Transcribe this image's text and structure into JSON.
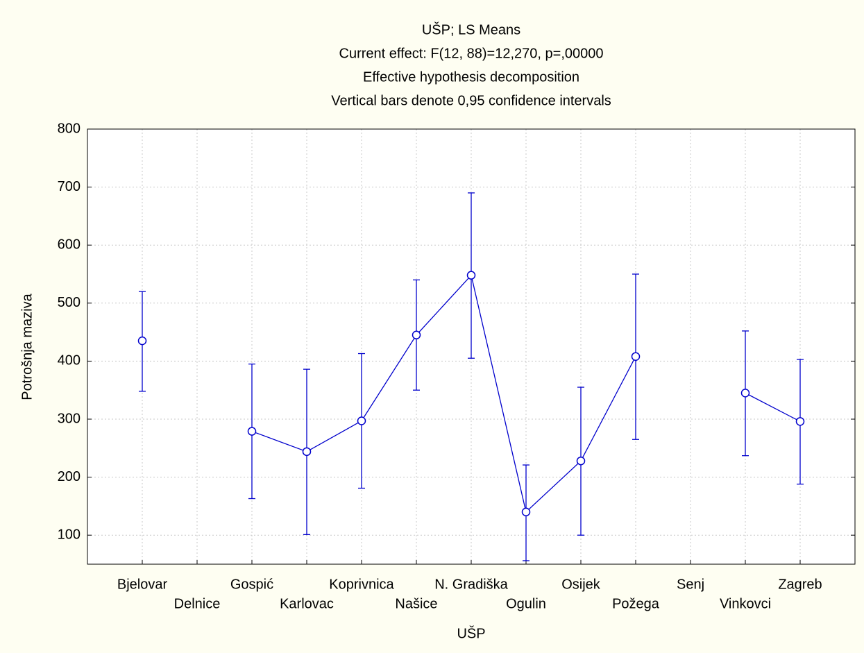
{
  "chart_data": {
    "type": "line",
    "title": "UŠP; LS Means",
    "subtitles": [
      "Current effect: F(12, 88)=12,270, p=,00000",
      "Effective hypothesis decomposition",
      "Vertical bars denote 0,95 confidence intervals"
    ],
    "x_label": "UŠP",
    "y_label": "Potrošnja maziva",
    "categories": [
      "Bjelovar",
      "Delnice",
      "Gospić",
      "Karlovac",
      "Koprivnica",
      "Našice",
      "N. Gradiška",
      "Ogulin",
      "Osijek",
      "Požega",
      "Senj",
      "Vinkovci",
      "Zagreb"
    ],
    "series": [
      {
        "color": "#0000cc",
        "values": [
          435,
          null,
          279,
          244,
          297,
          445,
          548,
          140,
          228,
          408,
          null,
          345,
          296
        ],
        "lower": [
          348,
          null,
          163,
          101,
          181,
          350,
          405,
          56,
          100,
          265,
          null,
          237,
          188
        ],
        "upper": [
          520,
          null,
          395,
          386,
          413,
          540,
          690,
          221,
          355,
          550,
          null,
          452,
          403
        ]
      }
    ],
    "ylim": [
      50,
      800
    ],
    "yticks": [
      100,
      200,
      300,
      400,
      500,
      600,
      700,
      800
    ],
    "grid": true
  }
}
